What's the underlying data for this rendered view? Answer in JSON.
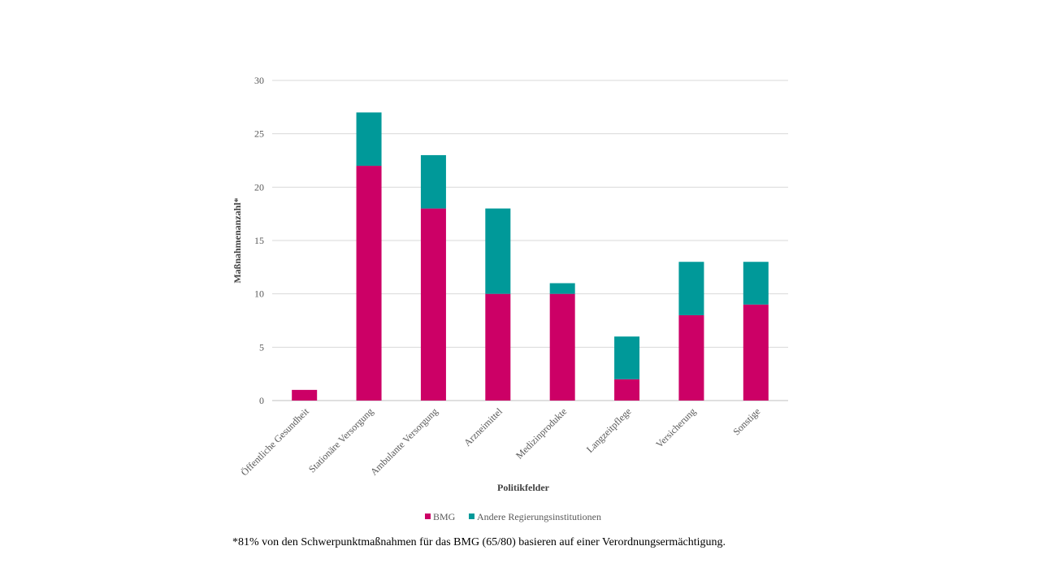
{
  "chart_data": {
    "type": "bar",
    "stacked": true,
    "categories": [
      "Öffentliche Gesundheit",
      "Stationäre Versorgung",
      "Ambulante Versorgung",
      "Arzneimittel",
      "Medizinprodukte",
      "Langzeitpflege",
      "Versicherung",
      "Sonstige"
    ],
    "series": [
      {
        "name": "BMG",
        "values": [
          1,
          22,
          18,
          10,
          10,
          2,
          8,
          9
        ],
        "color": "#cc0066"
      },
      {
        "name": "Andere Regierungsinstitutionen",
        "values": [
          0,
          5,
          5,
          8,
          1,
          4,
          5,
          4
        ],
        "color": "#009999"
      }
    ],
    "xlabel": "Politikfelder",
    "ylabel": "Maßnahmenanzahl*",
    "ylim": [
      0,
      30
    ],
    "yticks": [
      0,
      5,
      10,
      15,
      20,
      25,
      30
    ],
    "grid": true,
    "legend_position": "bottom"
  },
  "footnote": "*81% von den Schwerpunktmaßnahmen für das BMG (65/80) basieren auf einer Verordnungsermächtigung."
}
